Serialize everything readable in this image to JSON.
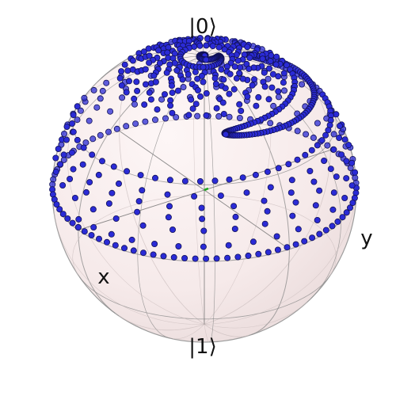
{
  "figure": {
    "type": "bloch-sphere",
    "labels": {
      "top": "|0⟩",
      "bottom": "|1⟩",
      "x": "x",
      "y": "y"
    },
    "colors": {
      "sphere_fill": "#f8ecec",
      "sphere_edge": "#9c9c9c",
      "frame": "#8a8a8a",
      "point_fill": "#2b2bd6",
      "point_edge": "#111155",
      "vector": "#1fa81f"
    },
    "trajectory": {
      "sample_count": 640
    }
  }
}
